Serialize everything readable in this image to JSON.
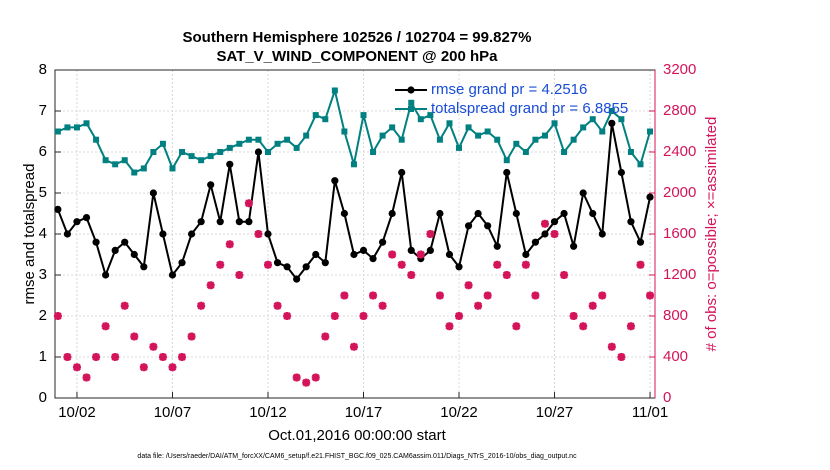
{
  "chart_data": {
    "type": "line",
    "title": "Southern Hemisphere 102526 / 102704 = 99.827%",
    "subtitle": "SAT_V_WIND_COMPONENT @ 200 hPa",
    "xlabel": "Oct.01,2016 00:00:00 start",
    "ylabel": "rmse and totalspread",
    "y2label": "# of obs: o=possible; ×=assimilated",
    "footnote": "data file: /Users/raeder/DAI/ATM_forcXX/CAM6_setup/f.e21.FHIST_BGC.f09_025.CAM6assim.011/Diags_NTrS_2016-10/obs_diag_output.nc",
    "grid": true,
    "xlim": [
      -0.15,
      31.26
    ],
    "xticks": [
      {
        "value": 1,
        "label": "10/02"
      },
      {
        "value": 6,
        "label": "10/07"
      },
      {
        "value": 11,
        "label": "10/12"
      },
      {
        "value": 16,
        "label": "10/17"
      },
      {
        "value": 21,
        "label": "10/22"
      },
      {
        "value": 26,
        "label": "10/27"
      },
      {
        "value": 31,
        "label": "11/01"
      }
    ],
    "ylim": [
      0,
      8
    ],
    "yticks": [
      0,
      1,
      2,
      3,
      4,
      5,
      6,
      7,
      8
    ],
    "y2lim": [
      0,
      3200
    ],
    "y2ticks": [
      0,
      400,
      800,
      1200,
      1600,
      2000,
      2400,
      2800,
      3200
    ],
    "x": [
      0,
      0.5,
      1,
      1.5,
      2,
      2.5,
      3,
      3.5,
      4,
      4.5,
      5,
      5.5,
      6,
      6.5,
      7,
      7.5,
      8,
      8.5,
      9,
      9.5,
      10,
      10.5,
      11,
      11.5,
      12,
      12.5,
      13,
      13.5,
      14,
      14.5,
      15,
      15.5,
      16,
      16.5,
      17,
      17.5,
      18,
      18.5,
      19,
      19.5,
      20,
      20.5,
      21,
      21.5,
      22,
      22.5,
      23,
      23.5,
      24,
      24.5,
      25,
      25.5,
      26,
      26.5,
      27,
      27.5,
      28,
      28.5,
      29,
      29.5,
      30,
      30.5,
      31
    ],
    "series": [
      {
        "name": "rmse grand pr = 4.2516",
        "color": "#000000",
        "marker": "circle",
        "values": [
          4.6,
          4.0,
          4.3,
          4.4,
          3.8,
          3.0,
          3.6,
          3.8,
          3.5,
          3.2,
          5.0,
          4.0,
          3.0,
          3.3,
          4.0,
          4.3,
          5.2,
          4.3,
          5.7,
          4.3,
          4.3,
          6.0,
          4.0,
          3.3,
          3.2,
          2.9,
          3.2,
          3.5,
          3.3,
          5.3,
          4.5,
          3.5,
          3.6,
          3.4,
          3.8,
          4.5,
          5.5,
          3.6,
          3.4,
          3.6,
          4.5,
          3.5,
          3.2,
          4.2,
          4.5,
          4.2,
          3.7,
          5.5,
          4.5,
          3.5,
          3.8,
          4.0,
          4.3,
          4.5,
          3.7,
          5.0,
          4.5,
          4.0,
          6.7,
          5.5,
          4.3,
          3.8,
          4.9
        ]
      },
      {
        "name": "totalspread grand pr = 6.8855",
        "color": "#008080",
        "marker": "square",
        "values": [
          6.5,
          6.6,
          6.6,
          6.7,
          6.3,
          5.8,
          5.7,
          5.8,
          5.5,
          5.6,
          6.0,
          6.2,
          5.6,
          6.0,
          5.9,
          5.8,
          5.9,
          6.0,
          6.1,
          6.2,
          6.3,
          6.3,
          6.0,
          6.2,
          6.3,
          6.1,
          6.4,
          6.9,
          6.8,
          7.5,
          6.5,
          5.7,
          6.9,
          6.0,
          6.4,
          6.6,
          6.3,
          7.2,
          6.8,
          6.9,
          6.3,
          6.7,
          6.1,
          6.6,
          6.4,
          6.5,
          6.3,
          5.8,
          6.2,
          6.0,
          6.3,
          6.4,
          6.7,
          6.0,
          6.3,
          6.6,
          6.8,
          6.5,
          7.0,
          6.8,
          6.0,
          5.7,
          6.5
        ]
      },
      {
        "color": "#d4145a",
        "marker": "star",
        "axis": "y2",
        "values": [
          800,
          400,
          300,
          200,
          400,
          700,
          400,
          900,
          600,
          300,
          500,
          400,
          300,
          400,
          600,
          900,
          1100,
          1300,
          1500,
          1200,
          1900,
          1600,
          1300,
          900,
          800,
          200,
          150,
          200,
          600,
          800,
          1000,
          500,
          800,
          1000,
          900,
          1400,
          1300,
          1200,
          1400,
          1600,
          1000,
          700,
          800,
          1100,
          900,
          1000,
          1300,
          1200,
          700,
          1300,
          1000,
          1700,
          1600,
          1200,
          800,
          700,
          900,
          1000,
          500,
          400,
          700,
          1300,
          1000
        ]
      }
    ]
  }
}
